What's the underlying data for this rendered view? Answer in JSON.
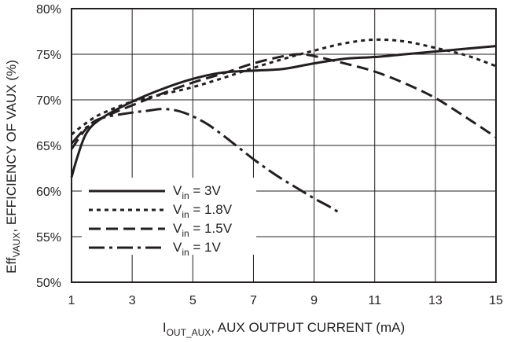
{
  "chart_data": {
    "type": "line",
    "title": "",
    "xlabel": {
      "main": "I",
      "sub": "OUT_AUX",
      "rest": ", AUX OUTPUT CURRENT (mA)"
    },
    "ylabel": {
      "main": "Eff",
      "sub": "VAUX",
      "rest": ", EFFICIENCY OF VAUX (%)"
    },
    "xlim": [
      1,
      15
    ],
    "ylim": [
      50,
      80
    ],
    "x_ticks": [
      1,
      3,
      5,
      7,
      9,
      11,
      13,
      15
    ],
    "y_ticks": [
      50,
      55,
      60,
      65,
      70,
      75,
      80
    ],
    "y_tick_labels": [
      "50%",
      "55%",
      "60%",
      "65%",
      "70%",
      "75%",
      "80%"
    ],
    "grid": true,
    "legend_position": "bottom-left",
    "series": [
      {
        "name": "Vin = 3V",
        "label": {
          "main": "V",
          "sub": "in",
          "rest": " = 3V"
        },
        "dash": "solid",
        "x": [
          1.0,
          1.2,
          1.5,
          2.0,
          3.0,
          4.0,
          5.0,
          6.0,
          7.0,
          8.0,
          9.0,
          10.0,
          11.0,
          12.0,
          13.0,
          14.0,
          15.0
        ],
        "y": [
          61.5,
          63.8,
          66.4,
          68.0,
          69.8,
          71.2,
          72.3,
          73.0,
          73.2,
          73.4,
          74.0,
          74.5,
          74.7,
          75.0,
          75.3,
          75.6,
          75.9
        ]
      },
      {
        "name": "Vin = 1.8V",
        "label": {
          "main": "V",
          "sub": "in",
          "rest": " = 1.8V"
        },
        "dash": "dashed-short",
        "x": [
          1.0,
          1.5,
          2.0,
          3.0,
          4.0,
          5.0,
          6.0,
          7.0,
          8.0,
          9.0,
          10.0,
          11.0,
          12.0,
          13.0,
          14.0,
          15.0
        ],
        "y": [
          66.2,
          67.5,
          68.5,
          69.8,
          70.6,
          71.4,
          72.4,
          73.5,
          74.5,
          75.4,
          76.2,
          76.6,
          76.4,
          75.7,
          74.9,
          73.7
        ]
      },
      {
        "name": "Vin = 1.5V",
        "label": {
          "main": "V",
          "sub": "in",
          "rest": " = 1.5V"
        },
        "dash": "dashed-long",
        "x": [
          1.0,
          1.5,
          2.0,
          3.0,
          4.0,
          5.0,
          6.0,
          7.0,
          8.0,
          8.5,
          9.0,
          10.0,
          11.0,
          12.0,
          13.0,
          14.0,
          15.0
        ],
        "y": [
          64.6,
          66.9,
          68.0,
          69.4,
          70.7,
          71.9,
          72.9,
          74.0,
          74.8,
          75.0,
          74.8,
          74.0,
          73.1,
          71.8,
          70.2,
          68.1,
          65.9
        ]
      },
      {
        "name": "Vin = 1V",
        "label": {
          "main": "V",
          "sub": "in",
          "rest": " = 1V"
        },
        "dash": "dash-dot",
        "x": [
          1.0,
          1.5,
          2.0,
          3.0,
          3.5,
          4.0,
          4.5,
          5.0,
          5.5,
          6.0,
          6.5,
          7.0,
          7.5,
          8.0,
          8.5,
          9.0,
          9.5,
          9.9
        ],
        "y": [
          65.2,
          67.0,
          68.0,
          68.6,
          68.8,
          69.0,
          68.8,
          68.2,
          67.3,
          66.1,
          64.8,
          63.5,
          62.3,
          61.2,
          60.2,
          59.2,
          58.3,
          57.5
        ]
      }
    ]
  }
}
